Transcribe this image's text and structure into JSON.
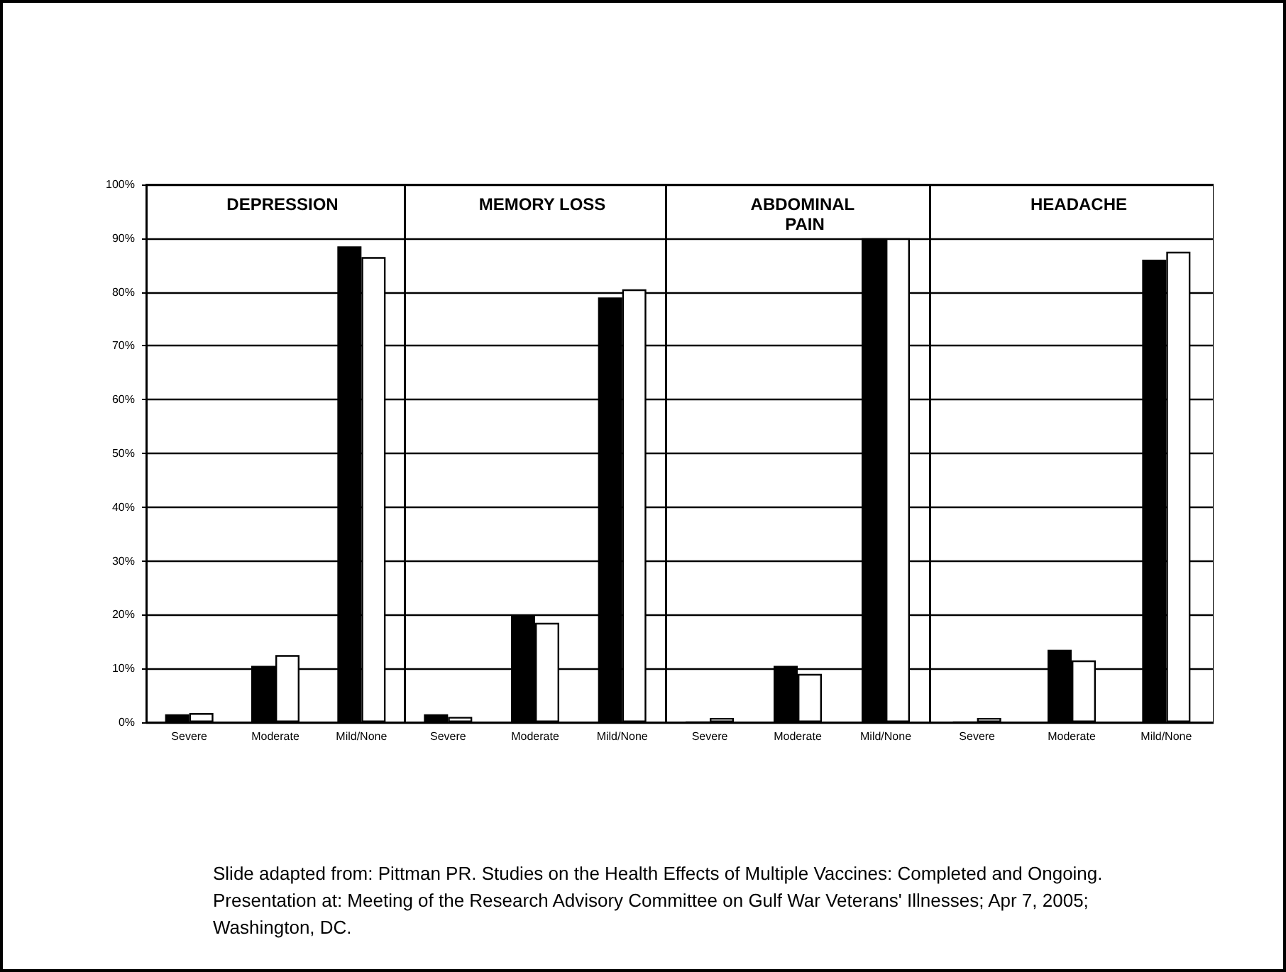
{
  "chart_data": [
    {
      "type": "bar",
      "title": "DEPRESSION",
      "categories": [
        "Severe",
        "Moderate",
        "Mild/None"
      ],
      "series": [
        {
          "color": "#000000",
          "values": [
            1.5,
            10.5,
            88.5
          ]
        },
        {
          "color": "#ffffff",
          "values": [
            1.7,
            12.5,
            86.5
          ]
        }
      ],
      "ylim": [
        0,
        100
      ],
      "yticks": [
        {
          "value": 0,
          "label": "0%"
        },
        {
          "value": 10,
          "label": "10%"
        },
        {
          "value": 20,
          "label": "20%"
        },
        {
          "value": 30,
          "label": "30%"
        },
        {
          "value": 40,
          "label": "40%"
        },
        {
          "value": 50,
          "label": "50%"
        },
        {
          "value": 60,
          "label": "60%"
        },
        {
          "value": 70,
          "label": "70%"
        },
        {
          "value": 80,
          "label": "80%"
        },
        {
          "value": 90,
          "label": "90%"
        },
        {
          "value": 100,
          "label": "100%"
        }
      ],
      "grid": "y"
    },
    {
      "type": "bar",
      "title": "MEMORY LOSS",
      "categories": [
        "Severe",
        "Moderate",
        "Mild/None"
      ],
      "series": [
        {
          "color": "#000000",
          "values": [
            1.5,
            20,
            79
          ]
        },
        {
          "color": "#ffffff",
          "values": [
            1.0,
            18.5,
            80.5
          ]
        }
      ],
      "ylim": [
        0,
        100
      ],
      "yticks": [
        0,
        10,
        20,
        30,
        40,
        50,
        60,
        70,
        80,
        90,
        100
      ],
      "grid": "y",
      "tick_labels": "x"
    },
    {
      "type": "bar",
      "title": "ABDOMINAL PAIN",
      "categories": [
        "Severe",
        "Moderate",
        "Mild/None"
      ],
      "series": [
        {
          "color": "#000000",
          "values": [
            0,
            10.5,
            90
          ]
        },
        {
          "color": "#ffffff",
          "values": [
            0.8,
            9,
            90
          ]
        }
      ],
      "ylim": [
        0,
        100
      ],
      "yticks": [
        0,
        10,
        20,
        30,
        40,
        50,
        60,
        70,
        80,
        90,
        100
      ],
      "grid": "y",
      "tick_labels": "x"
    },
    {
      "type": "bar",
      "title": "HEADACHE",
      "categories": [
        "Severe",
        "Moderate",
        "Mild/None"
      ],
      "series": [
        {
          "color": "#000000",
          "values": [
            0,
            13.5,
            86
          ]
        },
        {
          "color": "#ffffff",
          "values": [
            0.8,
            11.5,
            87.5
          ]
        }
      ],
      "ylim": [
        0,
        100
      ],
      "yticks": [
        0,
        10,
        20,
        30,
        40,
        50,
        60,
        70,
        80,
        90,
        100
      ],
      "grid": "y",
      "tick_labels": "x",
      "annotations": [
        "Slide adapted from:  Pittman PR.  Studies on the Health Effects of Multiple Vaccines: Completed and Ongoing.  Presentation at: Meeting of the Research Advisory Committee on Gulf War Veterans' Illnesses; Apr 7, 2005; Washington, DC."
      ]
    }
  ]
}
